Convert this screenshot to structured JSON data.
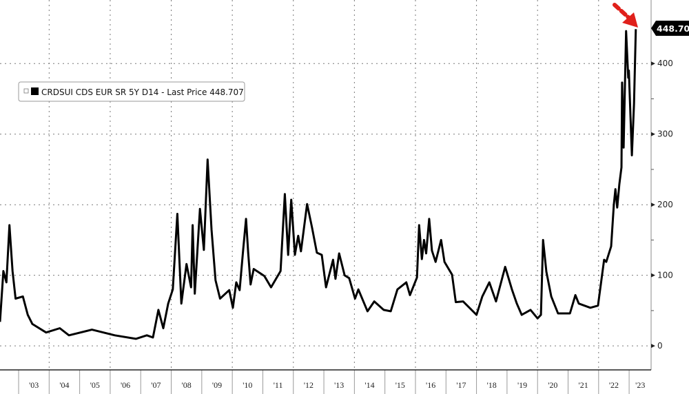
{
  "chart_data": {
    "type": "line",
    "title": "",
    "xlabel": "",
    "ylabel": "",
    "legend": {
      "text": "CRDSUI CDS EUR SR 5Y D14 - Last Price 448.707",
      "placement": "top-left"
    },
    "last_price_tag": "448.707",
    "y_ticks": [
      "0",
      "100",
      "200",
      "300",
      "400"
    ],
    "x_ticks": [
      "'03",
      "'04",
      "'05",
      "'06",
      "'07",
      "'08",
      "'09",
      "'10",
      "'11",
      "'12",
      "'13",
      "'14",
      "'15",
      "'16",
      "'17",
      "'18",
      "'19",
      "'20",
      "'21",
      "'22",
      "'23"
    ],
    "xlim": [
      2002.39,
      2023.72
    ],
    "ylim": [
      -34,
      490
    ],
    "grid": true,
    "colors": {
      "line": "#000000",
      "arrow": "#e0201b",
      "tag_bg": "#000000"
    },
    "annotation": "red-dashed-arrow pointing to last value",
    "series": [
      {
        "points": [
          [
            2002.39,
            34
          ],
          [
            2002.5,
            106
          ],
          [
            2002.6,
            90
          ],
          [
            2002.7,
            171
          ],
          [
            2002.8,
            106
          ],
          [
            2002.9,
            67
          ],
          [
            2003.14,
            70
          ],
          [
            2003.3,
            44
          ],
          [
            2003.45,
            31
          ],
          [
            2003.9,
            19
          ],
          [
            2004.35,
            25
          ],
          [
            2004.65,
            15
          ],
          [
            2005.4,
            23
          ],
          [
            2006.15,
            15
          ],
          [
            2006.84,
            10
          ],
          [
            2007.2,
            15
          ],
          [
            2007.4,
            12
          ],
          [
            2007.58,
            51
          ],
          [
            2007.74,
            25
          ],
          [
            2007.9,
            60
          ],
          [
            2008.05,
            80
          ],
          [
            2008.2,
            187
          ],
          [
            2008.33,
            60
          ],
          [
            2008.5,
            116
          ],
          [
            2008.65,
            83
          ],
          [
            2008.7,
            171
          ],
          [
            2008.77,
            74
          ],
          [
            2008.94,
            194
          ],
          [
            2009.07,
            136
          ],
          [
            2009.19,
            264
          ],
          [
            2009.32,
            165
          ],
          [
            2009.45,
            93
          ],
          [
            2009.6,
            67
          ],
          [
            2009.9,
            79
          ],
          [
            2010.02,
            54
          ],
          [
            2010.13,
            90
          ],
          [
            2010.24,
            79
          ],
          [
            2010.36,
            138
          ],
          [
            2010.45,
            180
          ],
          [
            2010.52,
            132
          ],
          [
            2010.6,
            87
          ],
          [
            2010.7,
            109
          ],
          [
            2011.05,
            99
          ],
          [
            2011.27,
            83
          ],
          [
            2011.58,
            106
          ],
          [
            2011.72,
            215
          ],
          [
            2011.83,
            129
          ],
          [
            2011.93,
            207
          ],
          [
            2012.05,
            129
          ],
          [
            2012.16,
            156
          ],
          [
            2012.25,
            134
          ],
          [
            2012.45,
            201
          ],
          [
            2012.61,
            168
          ],
          [
            2012.77,
            132
          ],
          [
            2012.93,
            129
          ],
          [
            2013.07,
            83
          ],
          [
            2013.3,
            122
          ],
          [
            2013.38,
            95
          ],
          [
            2013.5,
            131
          ],
          [
            2013.68,
            100
          ],
          [
            2013.83,
            96
          ],
          [
            2014.02,
            67
          ],
          [
            2014.13,
            80
          ],
          [
            2014.43,
            49
          ],
          [
            2014.65,
            63
          ],
          [
            2014.96,
            51
          ],
          [
            2015.19,
            49
          ],
          [
            2015.41,
            80
          ],
          [
            2015.7,
            90
          ],
          [
            2015.82,
            72
          ],
          [
            2016.05,
            97
          ],
          [
            2016.12,
            171
          ],
          [
            2016.21,
            123
          ],
          [
            2016.28,
            150
          ],
          [
            2016.35,
            131
          ],
          [
            2016.45,
            180
          ],
          [
            2016.54,
            135
          ],
          [
            2016.66,
            119
          ],
          [
            2016.84,
            150
          ],
          [
            2016.95,
            119
          ],
          [
            2017.2,
            101
          ],
          [
            2017.32,
            62
          ],
          [
            2017.56,
            63
          ],
          [
            2018.0,
            44
          ],
          [
            2018.19,
            70
          ],
          [
            2018.42,
            90
          ],
          [
            2018.64,
            63
          ],
          [
            2018.94,
            112
          ],
          [
            2019.16,
            80
          ],
          [
            2019.32,
            60
          ],
          [
            2019.48,
            44
          ],
          [
            2019.77,
            51
          ],
          [
            2020.0,
            39
          ],
          [
            2020.11,
            44
          ],
          [
            2020.18,
            150
          ],
          [
            2020.29,
            105
          ],
          [
            2020.45,
            70
          ],
          [
            2020.67,
            46
          ],
          [
            2021.06,
            46
          ],
          [
            2021.24,
            72
          ],
          [
            2021.35,
            60
          ],
          [
            2021.73,
            54
          ],
          [
            2021.98,
            57
          ],
          [
            2022.18,
            122
          ],
          [
            2022.25,
            119
          ],
          [
            2022.41,
            141
          ],
          [
            2022.5,
            200
          ],
          [
            2022.55,
            222
          ],
          [
            2022.61,
            196
          ],
          [
            2022.68,
            229
          ],
          [
            2022.75,
            253
          ],
          [
            2022.77,
            373
          ],
          [
            2022.82,
            281
          ],
          [
            2022.9,
            446
          ],
          [
            2022.97,
            380
          ],
          [
            2022.99,
            390
          ],
          [
            2023.09,
            270
          ],
          [
            2023.16,
            343
          ],
          [
            2023.22,
            448.707
          ]
        ]
      }
    ]
  }
}
